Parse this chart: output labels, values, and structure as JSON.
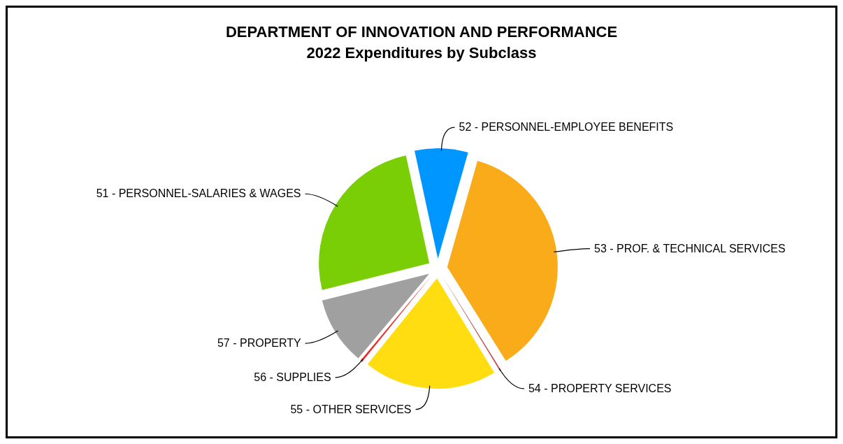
{
  "chart_data": {
    "type": "pie",
    "title": "DEPARTMENT OF INNOVATION AND PERFORMANCE",
    "subtitle": "2022 Expenditures by Subclass",
    "categories": [
      "51 - PERSONNEL-SALARIES & WAGES",
      "52 - PERSONNEL-EMPLOYEE BENEFITS",
      "53 - PROF. & TECHNICAL SERVICES",
      "54 - PROPERTY SERVICES",
      "55 - OTHER SERVICES",
      "56 - SUPPLIES",
      "57 - PROPERTY"
    ],
    "values": [
      25.5,
      7.8,
      36.7,
      0.2,
      19.5,
      0.3,
      10
    ],
    "colors": [
      "#7ace05",
      "#0096ff",
      "#f9ab1a",
      "#c0504d",
      "#ffdd11",
      "#e8302a",
      "#a0a0a0"
    ],
    "legend": false
  }
}
